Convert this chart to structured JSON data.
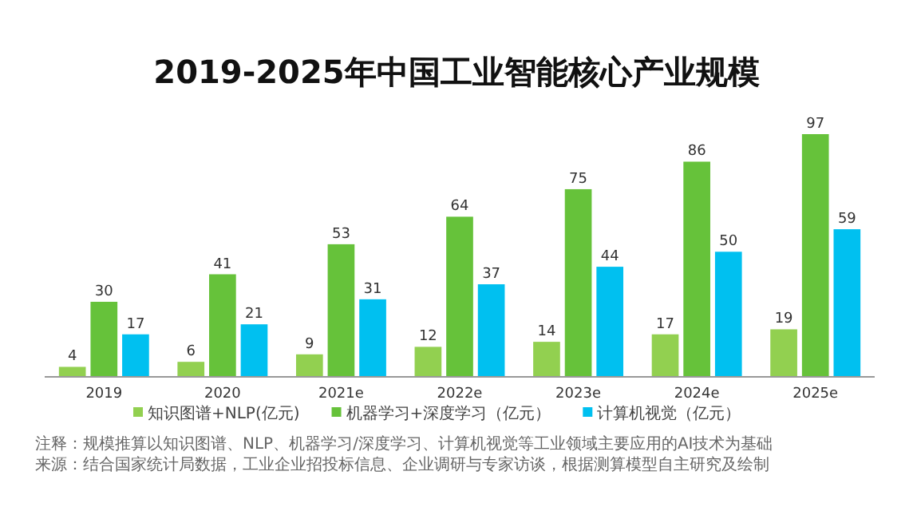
{
  "chart_data": {
    "type": "bar",
    "title": "2019-2025年中国工业智能核心产业规模",
    "categories": [
      "2019",
      "2020",
      "2021e",
      "2022e",
      "2023e",
      "2024e",
      "2025e"
    ],
    "series": [
      {
        "name": "知识图谱+NLP(亿元)",
        "color": "#92d050",
        "values": [
          4,
          6,
          9,
          12,
          14,
          17,
          19
        ]
      },
      {
        "name": "机器学习+深度学习（亿元）",
        "color": "#66c23a",
        "values": [
          30,
          41,
          53,
          64,
          75,
          86,
          97
        ]
      },
      {
        "name": "计算机视觉（亿元）",
        "color": "#00c0f0",
        "values": [
          17,
          21,
          31,
          37,
          44,
          50,
          59
        ]
      }
    ],
    "data_labels": true,
    "legend": "bottom",
    "annotations": [
      "注释：规模推算以知识图谱、NLP、机器学习/深度学习、计算机视觉等工业领域主要应用的AI技术为基础",
      "来源：结合国家统计局数据，工业企业招投标信息、企业调研与专家访谈，根据测算模型自主研究及绘制"
    ]
  }
}
